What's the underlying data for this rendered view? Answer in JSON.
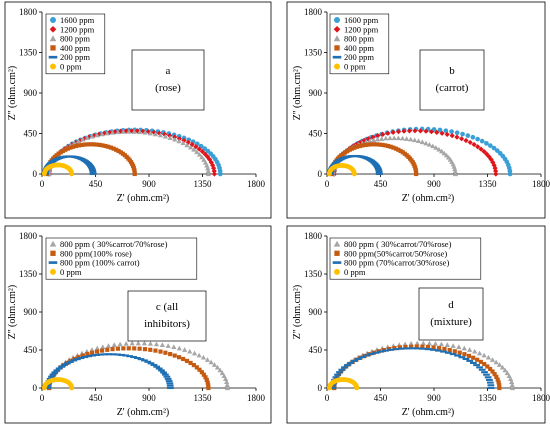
{
  "colors": {
    "blue": "#3a9fd6",
    "red": "#e0151b",
    "gray": "#a6a6a6",
    "orange": "#c55a11",
    "navy": "#1f6fb4",
    "yellow": "#ffc000"
  },
  "chart_data": [
    {
      "type": "scatter",
      "panel_label": [
        "a",
        "(rose)"
      ],
      "xlabel": "Z' (ohm.cm²)",
      "ylabel": "Z'' (ohm.cm²)",
      "xlim": [
        0,
        1800
      ],
      "ylim": [
        0,
        1800
      ],
      "xticks": [
        "0",
        "450",
        "900",
        "1350",
        "1800"
      ],
      "yticks": [
        "0",
        "450",
        "900",
        "1350",
        "1800"
      ],
      "legend_position": "top-left",
      "series": [
        {
          "name": "1600 ppm",
          "marker": "circle",
          "color": "blue",
          "start": 60,
          "end": 1500,
          "peak": 490
        },
        {
          "name": "1200 ppm",
          "marker": "diamond",
          "color": "red",
          "start": 60,
          "end": 1450,
          "peak": 480
        },
        {
          "name": "800 ppm",
          "marker": "triangle",
          "color": "gray",
          "start": 60,
          "end": 1400,
          "peak": 470
        },
        {
          "name": "400 ppm",
          "marker": "square",
          "color": "orange",
          "start": 40,
          "end": 780,
          "peak": 330
        },
        {
          "name": "200 ppm",
          "marker": "dash",
          "color": "navy",
          "start": 30,
          "end": 430,
          "peak": 195
        },
        {
          "name": "0 ppm",
          "marker": "circle",
          "color": "yellow",
          "start": 20,
          "end": 250,
          "peak": 100
        }
      ]
    },
    {
      "type": "scatter",
      "panel_label": [
        "b",
        "(carrot)"
      ],
      "xlabel": "Z' (ohm.cm²)",
      "ylabel": "Z'' (ohm.cm²)",
      "xlim": [
        0,
        1800
      ],
      "ylim": [
        0,
        1800
      ],
      "xticks": [
        "0",
        "450",
        "900",
        "1350",
        "1800"
      ],
      "yticks": [
        "0",
        "450",
        "900",
        "1350",
        "1800"
      ],
      "legend_position": "top-left",
      "series": [
        {
          "name": "1600 ppm",
          "marker": "circle",
          "color": "blue",
          "start": 60,
          "end": 1540,
          "peak": 500
        },
        {
          "name": "1200 ppm",
          "marker": "diamond",
          "color": "red",
          "start": 60,
          "end": 1420,
          "peak": 480
        },
        {
          "name": "800 ppm",
          "marker": "triangle",
          "color": "gray",
          "start": 50,
          "end": 1080,
          "peak": 400
        },
        {
          "name": "400 ppm",
          "marker": "square",
          "color": "orange",
          "start": 40,
          "end": 750,
          "peak": 330
        },
        {
          "name": "200 ppm",
          "marker": "dash",
          "color": "navy",
          "start": 30,
          "end": 440,
          "peak": 200
        },
        {
          "name": "0 ppm",
          "marker": "circle",
          "color": "yellow",
          "start": 20,
          "end": 230,
          "peak": 95
        }
      ]
    },
    {
      "type": "scatter",
      "panel_label": [
        "c (all",
        "inhibitors)"
      ],
      "xlabel": "Z' (ohm.cm²)",
      "ylabel": "Z'' (ohm.cm²)",
      "xlim": [
        0,
        1800
      ],
      "ylim": [
        0,
        1800
      ],
      "xticks": [
        "0",
        "450",
        "900",
        "1350",
        "1800"
      ],
      "yticks": [
        "0",
        "450",
        "900",
        "1350",
        "1800"
      ],
      "legend_position": "top-left",
      "series": [
        {
          "name": "800 ppm ( 30%carrot/70%rose)",
          "marker": "triangle",
          "color": "gray",
          "start": 60,
          "end": 1560,
          "peak": 530
        },
        {
          "name": "800 ppm(100% rose)",
          "marker": "square",
          "color": "orange",
          "start": 60,
          "end": 1400,
          "peak": 470
        },
        {
          "name": "800 ppm (100% carrot)",
          "marker": "dash",
          "color": "navy",
          "start": 50,
          "end": 1080,
          "peak": 400
        },
        {
          "name": "0 ppm",
          "marker": "circle",
          "color": "yellow",
          "start": 20,
          "end": 250,
          "peak": 100
        }
      ]
    },
    {
      "type": "scatter",
      "panel_label": [
        "d",
        "(mixture)"
      ],
      "xlabel": "Z' (ohm.cm²)",
      "ylabel": "Z'' (ohm.cm²)",
      "xlim": [
        0,
        1800
      ],
      "ylim": [
        0,
        1800
      ],
      "xticks": [
        "0",
        "450",
        "900",
        "1350",
        "1800"
      ],
      "yticks": [
        "0",
        "450",
        "900",
        "1350",
        "1800"
      ],
      "legend_position": "top-left",
      "series": [
        {
          "name": "800 ppm ( 30%carrot/70%rose)",
          "marker": "triangle",
          "color": "gray",
          "start": 60,
          "end": 1560,
          "peak": 530
        },
        {
          "name": "800 ppm(50%carrot/50%rose)",
          "marker": "square",
          "color": "orange",
          "start": 60,
          "end": 1450,
          "peak": 490
        },
        {
          "name": "800 ppm (70%carrot/30%rose)",
          "marker": "dash",
          "color": "navy",
          "start": 50,
          "end": 1380,
          "peak": 470
        },
        {
          "name": "0 ppm",
          "marker": "circle",
          "color": "yellow",
          "start": 20,
          "end": 250,
          "peak": 100
        }
      ]
    }
  ]
}
